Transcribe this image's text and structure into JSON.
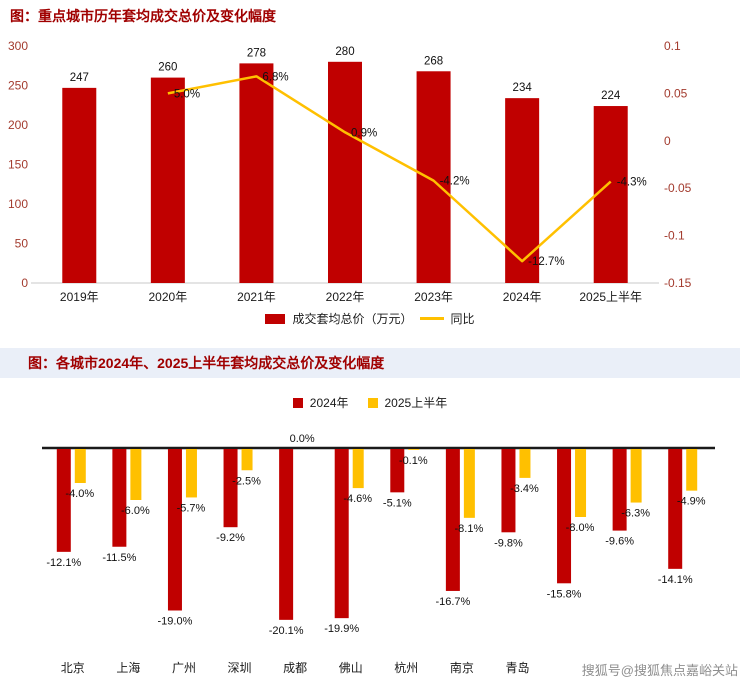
{
  "page": {
    "watermark": "搜狐号@搜狐焦点嘉峪关站"
  },
  "colors": {
    "bar_red": "#C00000",
    "line_yellow": "#FFC000",
    "title_red": "#A00000",
    "axis_tick": "#A33B2E",
    "zero_line": "#1a1a1a",
    "title2_band_bg": "#EAEFF8",
    "watermark_gray": "#8F8F8F"
  },
  "chart1": {
    "title": "图：重点城市历年套均成交总价及变化幅度",
    "legend_bar": "成交套均总价（万元）",
    "legend_line": "同比"
  },
  "chart2": {
    "title": "图：各城市2024年、2025上半年套均成交总价及变化幅度",
    "legend_2024": "2024年",
    "legend_2025": "2025上半年"
  },
  "chart_data": [
    {
      "type": "bar",
      "title": "图：重点城市历年套均成交总价及变化幅度",
      "categories": [
        "2019年",
        "2020年",
        "2021年",
        "2022年",
        "2023年",
        "2024年",
        "2025上半年"
      ],
      "series": [
        {
          "name": "成交套均总价（万元）",
          "type": "bar",
          "axis": "left",
          "values": [
            247,
            260,
            278,
            280,
            268,
            234,
            224
          ]
        },
        {
          "name": "同比",
          "type": "line",
          "axis": "right",
          "values": [
            null,
            0.05,
            0.068,
            0.009,
            -0.042,
            -0.127,
            -0.043
          ],
          "point_labels": [
            "",
            "5.0%",
            "6.8%",
            "0.9%",
            "-4.2%",
            "-12.7%",
            "-4.3%"
          ]
        }
      ],
      "left_axis": {
        "min": 0,
        "max": 300,
        "ticks": [
          "0",
          "50",
          "100",
          "150",
          "200",
          "250",
          "300"
        ]
      },
      "right_axis": {
        "min": -0.15,
        "max": 0.1,
        "ticks": [
          "0.1",
          "0.05",
          "0",
          "-0.05",
          "-0.1",
          "-0.15"
        ]
      },
      "grid": false,
      "legend_position": "bottom"
    },
    {
      "type": "bar",
      "title": "图：各城市2024年、2025上半年套均成交总价及变化幅度",
      "categories": [
        "北京",
        "上海",
        "广州",
        "深圳",
        "成都",
        "佛山",
        "杭州",
        "南京",
        "青岛",
        "",
        "",
        ""
      ],
      "series": [
        {
          "name": "2024年",
          "values": [
            -12.1,
            -11.5,
            -19.0,
            -9.2,
            -20.1,
            -19.9,
            -5.1,
            -16.7,
            -9.8,
            -15.8,
            -9.6,
            -14.1
          ]
        },
        {
          "name": "2025上半年",
          "values": [
            -4.0,
            -6.0,
            -5.7,
            -2.5,
            0.0,
            -4.6,
            -0.1,
            -8.1,
            -3.4,
            -8.0,
            -6.3,
            -4.9
          ]
        }
      ],
      "value_suffix": "%",
      "ylim": [
        -22,
        0
      ],
      "grid": false,
      "legend_position": "top"
    }
  ]
}
